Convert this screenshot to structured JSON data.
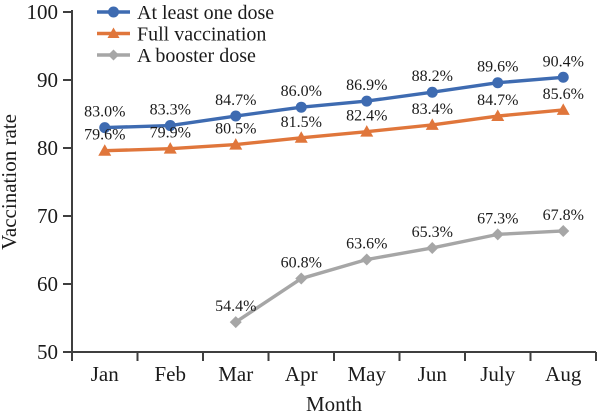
{
  "figure": {
    "background": "#ffffff",
    "text_color": "#1b1b1b",
    "axis_color": "#3f3f3f"
  },
  "chart_data": {
    "type": "line",
    "title": "",
    "xlabel": "Month",
    "ylabel": "Vaccination rate",
    "ylim": [
      50,
      100
    ],
    "yticks": [
      "50",
      "60",
      "70",
      "80",
      "90",
      "100"
    ],
    "grid": false,
    "legend_position": "top-left",
    "categories": [
      "Jan",
      "Feb",
      "Mar",
      "Apr",
      "May",
      "Jun",
      "July",
      "Aug"
    ],
    "series": [
      {
        "name": "At least one dose",
        "marker": "circle",
        "color": "#3E6BB1",
        "values": [
          83.0,
          83.3,
          84.7,
          86.0,
          86.9,
          88.2,
          89.6,
          90.4
        ],
        "labels": [
          "83.0%",
          "83.3%",
          "84.7%",
          "86.0%",
          "86.9%",
          "88.2%",
          "89.6%",
          "90.4%"
        ]
      },
      {
        "name": "Full vaccination",
        "marker": "triangle",
        "color": "#E0763B",
        "values": [
          79.6,
          79.9,
          80.5,
          81.5,
          82.4,
          83.4,
          84.7,
          85.6
        ],
        "labels": [
          "79.6%",
          "79.9%",
          "80.5%",
          "81.5%",
          "82.4%",
          "83.4%",
          "84.7%",
          "85.6%"
        ]
      },
      {
        "name": "A booster dose",
        "marker": "diamond",
        "color": "#A6A6A6",
        "values": [
          null,
          null,
          54.4,
          60.8,
          63.6,
          65.3,
          67.3,
          67.8
        ],
        "labels": [
          null,
          null,
          "54.4%",
          "60.8%",
          "63.6%",
          "65.3%",
          "67.3%",
          "67.8%"
        ]
      }
    ]
  }
}
